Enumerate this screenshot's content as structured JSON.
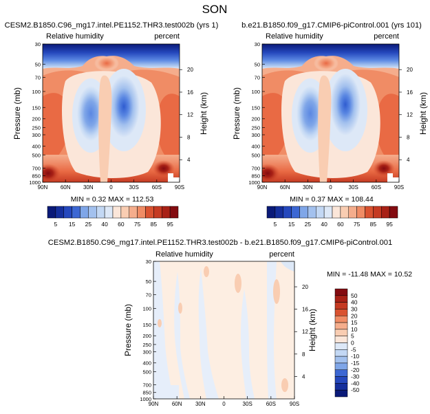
{
  "title": "SON",
  "colors": {
    "pos": [
      "#fbe6d9",
      "#f9cdb2",
      "#f5ad8c",
      "#f08c65",
      "#e96a44",
      "#d95230",
      "#c53a22",
      "#a82116",
      "#830b10"
    ],
    "neg": [
      "#dde8f7",
      "#c3d8f4",
      "#a3c1ee",
      "#7fa6e8",
      "#5a87e2",
      "#3c67d3",
      "#2548bd",
      "#152f9c",
      "#0a1a78"
    ],
    "diff_bg_pos": "#fdeee2",
    "diff_bg_neg": "#e6eefa"
  },
  "chart_data": [
    {
      "id": "panel1",
      "type": "heatmap",
      "title": "CESM2.B1850.C96_mg17.intel.PE1152.THR3.test002b (yrs 1)",
      "left_label": "Relative humidity",
      "right_label": "percent",
      "xlabel": "",
      "ylabel": "Pressure (mb)",
      "ylabel_right": "Height (km)",
      "x_ticks": [
        "90N",
        "60N",
        "30N",
        "0",
        "30S",
        "60S",
        "90S"
      ],
      "y_ticks": [
        "1000",
        "850",
        "700",
        "500",
        "400",
        "300",
        "250",
        "200",
        "150",
        "100",
        "70",
        "50",
        "30"
      ],
      "height_ticks": [
        "4",
        "8",
        "12",
        "16",
        "20"
      ],
      "xlim": [
        90,
        -90
      ],
      "ylim": [
        1000,
        30
      ],
      "stats": "MIN =  0.32   MAX = 112.53",
      "levels": [
        5,
        10,
        15,
        20,
        25,
        30,
        40,
        50,
        60,
        70,
        75,
        80,
        85,
        90,
        95
      ],
      "colorbar_labels": [
        "5",
        "15",
        "25",
        "40",
        "60",
        "75",
        "85",
        "95"
      ]
    },
    {
      "id": "panel2",
      "type": "heatmap",
      "title": "b.e21.B1850.f09_g17.CMIP6-piControl.001 (yrs 101)",
      "left_label": "Relative humidity",
      "right_label": "percent",
      "xlabel": "",
      "ylabel": "Pressure (mb)",
      "ylabel_right": "Height (km)",
      "x_ticks": [
        "90N",
        "60N",
        "30N",
        "0",
        "30S",
        "60S",
        "90S"
      ],
      "y_ticks": [
        "1000",
        "850",
        "700",
        "500",
        "400",
        "300",
        "250",
        "200",
        "150",
        "100",
        "70",
        "50",
        "30"
      ],
      "height_ticks": [
        "4",
        "8",
        "12",
        "16",
        "20"
      ],
      "xlim": [
        90,
        -90
      ],
      "ylim": [
        1000,
        30
      ],
      "stats": "MIN =  0.37   MAX = 108.44",
      "levels": [
        5,
        10,
        15,
        20,
        25,
        30,
        40,
        50,
        60,
        70,
        75,
        80,
        85,
        90,
        95
      ],
      "colorbar_labels": [
        "5",
        "15",
        "25",
        "40",
        "60",
        "75",
        "85",
        "95"
      ]
    },
    {
      "id": "panel3",
      "type": "heatmap",
      "title": "CESM2.B1850.C96_mg17.intel.PE1152.THR3.test002b - b.e21.B1850.f09_g17.CMIP6-piControl.001",
      "left_label": "Relative humidity",
      "right_label": "percent",
      "xlabel": "",
      "ylabel": "Pressure (mb)",
      "ylabel_right": "Height (km)",
      "x_ticks": [
        "90N",
        "60N",
        "30N",
        "0",
        "30S",
        "60S",
        "90S"
      ],
      "y_ticks": [
        "1000",
        "850",
        "700",
        "500",
        "400",
        "300",
        "250",
        "200",
        "150",
        "100",
        "70",
        "50",
        "30"
      ],
      "height_ticks": [
        "4",
        "8",
        "12",
        "16",
        "20"
      ],
      "xlim": [
        90,
        -90
      ],
      "ylim": [
        1000,
        30
      ],
      "stats": "MIN = -11.48   MAX =  10.52",
      "levels": [
        -50,
        -40,
        -30,
        -20,
        -15,
        -10,
        -5,
        0,
        5,
        10,
        15,
        20,
        30,
        40,
        50
      ],
      "colorbar_labels": [
        "50",
        "40",
        "30",
        "20",
        "15",
        "10",
        "5",
        "0",
        "-5",
        "-10",
        "-15",
        "-20",
        "-30",
        "-40",
        "-50"
      ]
    }
  ]
}
